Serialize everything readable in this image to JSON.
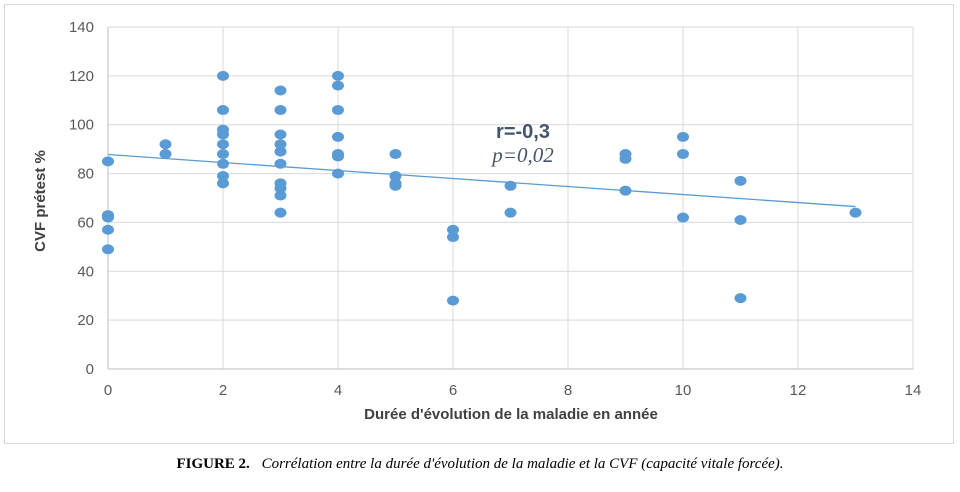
{
  "chart_data": {
    "type": "scatter",
    "xlabel": "Durée d'évolution de la maladie en année",
    "ylabel": "CVF prétest %",
    "xlim": [
      0,
      14
    ],
    "ylim": [
      0,
      140
    ],
    "xticks": [
      0,
      2,
      4,
      6,
      8,
      10,
      12,
      14
    ],
    "yticks": [
      0,
      20,
      40,
      60,
      80,
      100,
      120,
      140
    ],
    "grid": true,
    "point_color": "#5b9bd5",
    "trendline_color": "#5b9bd5",
    "points": [
      [
        0,
        85
      ],
      [
        0,
        63
      ],
      [
        0,
        62
      ],
      [
        0,
        57
      ],
      [
        0,
        49
      ],
      [
        1,
        92
      ],
      [
        1,
        88
      ],
      [
        2,
        120
      ],
      [
        2,
        106
      ],
      [
        2,
        98
      ],
      [
        2,
        96
      ],
      [
        2,
        92
      ],
      [
        2,
        88
      ],
      [
        2,
        84
      ],
      [
        2,
        79
      ],
      [
        2,
        76
      ],
      [
        3,
        114
      ],
      [
        3,
        106
      ],
      [
        3,
        96
      ],
      [
        3,
        92
      ],
      [
        3,
        89
      ],
      [
        3,
        84
      ],
      [
        3,
        76
      ],
      [
        3,
        74
      ],
      [
        3,
        71
      ],
      [
        3,
        64
      ],
      [
        4,
        120
      ],
      [
        4,
        116
      ],
      [
        4,
        106
      ],
      [
        4,
        95
      ],
      [
        4,
        88
      ],
      [
        4,
        87
      ],
      [
        4,
        80
      ],
      [
        5,
        88
      ],
      [
        5,
        79
      ],
      [
        5,
        76
      ],
      [
        5,
        75
      ],
      [
        6,
        57
      ],
      [
        6,
        54
      ],
      [
        6,
        28
      ],
      [
        7,
        75
      ],
      [
        7,
        64
      ],
      [
        9,
        88
      ],
      [
        9,
        86
      ],
      [
        9,
        73
      ],
      [
        10,
        95
      ],
      [
        10,
        88
      ],
      [
        10,
        62
      ],
      [
        11,
        77
      ],
      [
        11,
        61
      ],
      [
        11,
        29
      ],
      [
        13,
        64
      ]
    ],
    "trendline": {
      "x": [
        0,
        13
      ],
      "y": [
        87.8,
        66.5
      ]
    },
    "annotations": {
      "r": "r=-0,3",
      "p": "p=0,02"
    }
  },
  "caption": {
    "label": "FIGURE 2.",
    "text": "Corrélation entre la durée d'évolution de la maladie et la CVF (capacité vitale forcée)."
  }
}
